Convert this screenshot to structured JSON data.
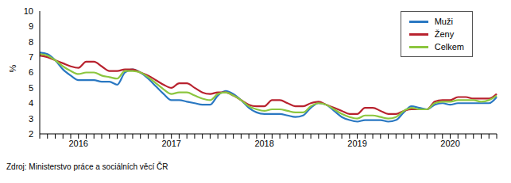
{
  "chart_data": {
    "type": "line",
    "y_label": "%",
    "annotations": [
      "Zdroj: Ministerstvo práce a sociálních věcí ČR"
    ],
    "categories": [
      null,
      null,
      null,
      null,
      null,
      "2016",
      null,
      null,
      null,
      null,
      null,
      null,
      null,
      null,
      null,
      null,
      null,
      "2017",
      null,
      null,
      null,
      null,
      null,
      null,
      null,
      null,
      null,
      null,
      null,
      "2018",
      null,
      null,
      null,
      null,
      null,
      null,
      null,
      null,
      null,
      null,
      null,
      "2019",
      null,
      null,
      null,
      null,
      null,
      null,
      null,
      null,
      null,
      null,
      null,
      "2020",
      null,
      null,
      null,
      null,
      null,
      null
    ],
    "series": [
      {
        "name": "Muži",
        "color": "#2a78c2",
        "values": [
          7.3,
          7.2,
          6.8,
          6.2,
          5.8,
          5.5,
          5.5,
          5.5,
          5.4,
          5.4,
          5.2,
          6.0,
          6.2,
          6.0,
          5.6,
          5.1,
          4.6,
          4.2,
          4.2,
          4.1,
          4.0,
          3.9,
          3.9,
          4.5,
          4.8,
          4.6,
          4.2,
          3.7,
          3.4,
          3.3,
          3.3,
          3.3,
          3.2,
          3.1,
          3.2,
          3.7,
          4.0,
          3.9,
          3.5,
          3.1,
          2.9,
          2.8,
          2.9,
          2.9,
          2.9,
          2.8,
          2.9,
          3.4,
          3.8,
          3.7,
          3.6,
          3.9,
          4.0,
          3.9,
          4.0,
          4.0,
          4.0,
          4.0,
          4.0,
          4.4
        ]
      },
      {
        "name": "Ženy",
        "color": "#b8222e",
        "values": [
          7.1,
          7.0,
          6.8,
          6.6,
          6.4,
          6.3,
          6.7,
          6.7,
          6.4,
          6.1,
          6.1,
          6.2,
          6.2,
          6.0,
          5.8,
          5.5,
          5.2,
          5.0,
          5.3,
          5.3,
          5.0,
          4.7,
          4.6,
          4.7,
          4.7,
          4.5,
          4.2,
          3.9,
          3.8,
          3.8,
          4.2,
          4.2,
          4.0,
          3.8,
          3.8,
          4.0,
          4.1,
          3.9,
          3.7,
          3.5,
          3.3,
          3.3,
          3.7,
          3.7,
          3.5,
          3.3,
          3.3,
          3.5,
          3.6,
          3.6,
          3.6,
          4.1,
          4.2,
          4.2,
          4.4,
          4.4,
          4.3,
          4.3,
          4.3,
          4.6
        ]
      },
      {
        "name": "Celkem",
        "color": "#8cc63f",
        "values": [
          7.2,
          7.1,
          6.8,
          6.4,
          6.1,
          5.9,
          6.0,
          6.0,
          5.8,
          5.7,
          5.6,
          6.1,
          6.1,
          6.0,
          5.7,
          5.3,
          4.9,
          4.6,
          4.7,
          4.7,
          4.5,
          4.3,
          4.2,
          4.6,
          4.7,
          4.5,
          4.2,
          3.8,
          3.6,
          3.5,
          3.6,
          3.6,
          3.5,
          3.4,
          3.4,
          3.8,
          4.0,
          3.9,
          3.6,
          3.3,
          3.1,
          3.0,
          3.2,
          3.2,
          3.1,
          3.0,
          3.1,
          3.5,
          3.7,
          3.6,
          3.6,
          4.0,
          4.1,
          4.1,
          4.2,
          4.2,
          4.2,
          4.1,
          4.2,
          4.5
        ]
      }
    ],
    "ylim": [
      2,
      10
    ],
    "yticks": [
      2,
      3,
      4,
      5,
      6,
      7,
      8,
      9,
      10
    ],
    "grid": false,
    "legend": "upper right"
  }
}
